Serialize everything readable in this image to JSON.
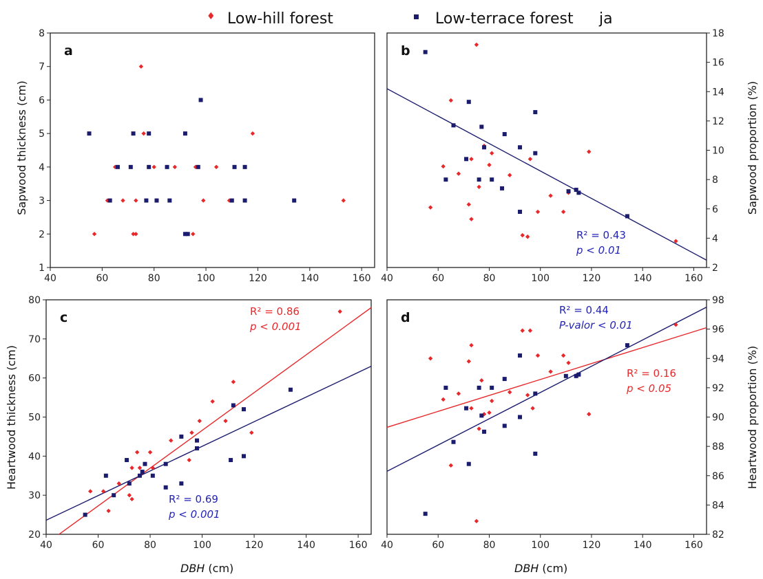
{
  "legend": {
    "low_hill": "Low-hill forest",
    "low_terrace": "Low-terrace forest",
    "extra": "ja"
  },
  "colors": {
    "low_hill": "#e8282a",
    "low_terrace": "#1c1c6e",
    "stat_red": "#e8282a",
    "stat_blue": "#2424b4"
  },
  "chart_data": [
    {
      "id": "a",
      "type": "scatter",
      "letter": "a",
      "ylabel": "Sapwood thickness (cm)",
      "xlabel": "",
      "xlim": [
        40,
        165
      ],
      "ylim": [
        1,
        8
      ],
      "xticks": [
        40,
        60,
        80,
        100,
        120,
        140,
        160
      ],
      "yticks": [
        1,
        2,
        3,
        4,
        5,
        6,
        7,
        8
      ],
      "series": [
        {
          "name": "Low-hill forest",
          "color": "#e8282a",
          "points": [
            [
              57,
              2
            ],
            [
              62,
              3
            ],
            [
              65,
              4
            ],
            [
              68,
              3
            ],
            [
              72,
              2
            ],
            [
              73,
              2
            ],
            [
              73,
              3
            ],
            [
              75,
              7
            ],
            [
              76,
              5
            ],
            [
              80,
              4
            ],
            [
              81,
              3
            ],
            [
              88,
              4
            ],
            [
              95,
              2
            ],
            [
              96,
              4
            ],
            [
              99,
              3
            ],
            [
              104,
              4
            ],
            [
              109,
              3
            ],
            [
              118,
              5
            ],
            [
              153,
              3
            ]
          ]
        },
        {
          "name": "Low-terrace forest",
          "color": "#1c1c6e",
          "points": [
            [
              55,
              5
            ],
            [
              63,
              3
            ],
            [
              66,
              4
            ],
            [
              71,
              4
            ],
            [
              72,
              5
            ],
            [
              77,
              3
            ],
            [
              78,
              5
            ],
            [
              78,
              4
            ],
            [
              81,
              3
            ],
            [
              85,
              4
            ],
            [
              86,
              3
            ],
            [
              92,
              5
            ],
            [
              92,
              2
            ],
            [
              93,
              2
            ],
            [
              97,
              4
            ],
            [
              98,
              6
            ],
            [
              110,
              3
            ],
            [
              111,
              4
            ],
            [
              115,
              4
            ],
            [
              115,
              3
            ],
            [
              134,
              3
            ]
          ]
        }
      ],
      "fits": [],
      "stats": []
    },
    {
      "id": "b",
      "type": "scatter",
      "letter": "b",
      "ylabel": "Sapwood proportion (%)",
      "xlabel": "",
      "xlim": [
        40,
        165
      ],
      "ylim": [
        2,
        18
      ],
      "xticks": [
        40,
        60,
        80,
        100,
        120,
        140,
        160
      ],
      "yticks": [
        2,
        4,
        6,
        8,
        10,
        12,
        14,
        16,
        18
      ],
      "series": [
        {
          "name": "Low-hill forest",
          "color": "#e8282a",
          "points": [
            [
              57,
              6.1
            ],
            [
              62,
              8.9
            ],
            [
              65,
              13.4
            ],
            [
              68,
              8.4
            ],
            [
              72,
              6.3
            ],
            [
              73,
              5.3
            ],
            [
              73,
              9.4
            ],
            [
              75,
              17.2
            ],
            [
              76,
              7.5
            ],
            [
              78,
              10.3
            ],
            [
              80,
              9
            ],
            [
              81,
              9.8
            ],
            [
              88,
              8.3
            ],
            [
              93,
              4.2
            ],
            [
              95,
              4.1
            ],
            [
              96,
              9.4
            ],
            [
              99,
              5.8
            ],
            [
              104,
              6.9
            ],
            [
              109,
              5.8
            ],
            [
              111,
              7.1
            ],
            [
              119,
              9.9
            ],
            [
              153,
              3.8
            ]
          ]
        },
        {
          "name": "Low-terrace forest",
          "color": "#1c1c6e",
          "points": [
            [
              55,
              16.7
            ],
            [
              63,
              8
            ],
            [
              66,
              11.7
            ],
            [
              71,
              9.4
            ],
            [
              72,
              13.3
            ],
            [
              76,
              8
            ],
            [
              77,
              11.6
            ],
            [
              78,
              10.2
            ],
            [
              81,
              8
            ],
            [
              85,
              7.4
            ],
            [
              86,
              11.1
            ],
            [
              92,
              10.2
            ],
            [
              92,
              5.8
            ],
            [
              98,
              9.8
            ],
            [
              98,
              12.6
            ],
            [
              111,
              7.2
            ],
            [
              114,
              7.3
            ],
            [
              115,
              7.1
            ],
            [
              134,
              5.5
            ]
          ]
        }
      ],
      "fits": [
        {
          "series": "Low-terrace forest",
          "color": "#1c1c6e",
          "x0": 40,
          "y0": 14.2,
          "x1": 165,
          "y1": 2.5
        }
      ],
      "stats": [
        {
          "color": "#2424b4",
          "r2": "R² = 0.43",
          "p": "p < 0.01",
          "pos": "bottom-right"
        }
      ]
    },
    {
      "id": "c",
      "type": "scatter",
      "letter": "c",
      "ylabel": "Heartwood thickness (cm)",
      "xlabel": "DBH (cm)",
      "xlim": [
        40,
        165
      ],
      "ylim": [
        20,
        80
      ],
      "xticks": [
        40,
        60,
        80,
        100,
        120,
        140,
        160
      ],
      "yticks": [
        20,
        30,
        40,
        50,
        60,
        70,
        80
      ],
      "series": [
        {
          "name": "Low-hill forest",
          "color": "#e8282a",
          "points": [
            [
              57,
              31
            ],
            [
              62,
              31
            ],
            [
              64,
              26
            ],
            [
              68,
              33
            ],
            [
              72,
              30
            ],
            [
              73,
              29
            ],
            [
              73,
              37
            ],
            [
              75,
              41
            ],
            [
              76,
              37
            ],
            [
              80,
              41
            ],
            [
              81,
              37
            ],
            [
              88,
              44
            ],
            [
              95,
              39
            ],
            [
              96,
              46
            ],
            [
              99,
              49
            ],
            [
              104,
              54
            ],
            [
              109,
              49
            ],
            [
              112,
              59
            ],
            [
              119,
              46
            ],
            [
              153,
              77
            ]
          ]
        },
        {
          "name": "Low-terrace forest",
          "color": "#1c1c6e",
          "points": [
            [
              55,
              25
            ],
            [
              63,
              35
            ],
            [
              66,
              30
            ],
            [
              71,
              39
            ],
            [
              72,
              33
            ],
            [
              76,
              35
            ],
            [
              77,
              36
            ],
            [
              78,
              38
            ],
            [
              81,
              35
            ],
            [
              86,
              38
            ],
            [
              86,
              32
            ],
            [
              92,
              33
            ],
            [
              92,
              45
            ],
            [
              98,
              42
            ],
            [
              98,
              44
            ],
            [
              111,
              39
            ],
            [
              112,
              53
            ],
            [
              116,
              52
            ],
            [
              116,
              40
            ],
            [
              134,
              57
            ]
          ]
        }
      ],
      "fits": [
        {
          "series": "Low-hill forest",
          "color": "#e8282a",
          "x0": 40,
          "y0": 17.6,
          "x1": 165,
          "y1": 78
        },
        {
          "series": "Low-terrace forest",
          "color": "#1c1c6e",
          "x0": 40,
          "y0": 23.6,
          "x1": 165,
          "y1": 63
        }
      ],
      "stats": [
        {
          "color": "#e8282a",
          "r2": "R² = 0.86",
          "p": "p < 0.001",
          "pos": "top-right"
        },
        {
          "color": "#2424b4",
          "r2": "R² = 0.69",
          "p": "p < 0.001",
          "pos": "bottom-mid"
        }
      ]
    },
    {
      "id": "d",
      "type": "scatter",
      "letter": "d",
      "ylabel": "Heartwood proportion (%)",
      "xlabel": "DBH (cm)",
      "xlim": [
        40,
        165
      ],
      "ylim": [
        82,
        98
      ],
      "xticks": [
        40,
        60,
        80,
        100,
        120,
        140,
        160
      ],
      "yticks": [
        82,
        84,
        86,
        88,
        90,
        92,
        94,
        96,
        98
      ],
      "series": [
        {
          "name": "Low-hill forest",
          "color": "#e8282a",
          "points": [
            [
              57,
              94
            ],
            [
              62,
              91.2
            ],
            [
              65,
              86.7
            ],
            [
              68,
              91.6
            ],
            [
              72,
              93.8
            ],
            [
              73,
              94.9
            ],
            [
              73,
              90.6
            ],
            [
              75,
              82.9
            ],
            [
              76,
              89.2
            ],
            [
              77,
              92.5
            ],
            [
              78,
              90.2
            ],
            [
              80,
              90.3
            ],
            [
              81,
              91.1
            ],
            [
              88,
              91.7
            ],
            [
              93,
              95.9
            ],
            [
              95,
              91.5
            ],
            [
              96,
              95.9
            ],
            [
              97,
              90.6
            ],
            [
              99,
              94.2
            ],
            [
              104,
              93.1
            ],
            [
              109,
              94.2
            ],
            [
              111,
              93.7
            ],
            [
              119,
              90.2
            ],
            [
              153,
              96.3
            ]
          ]
        },
        {
          "name": "Low-terrace forest",
          "color": "#1c1c6e",
          "points": [
            [
              55,
              83.4
            ],
            [
              63,
              92
            ],
            [
              66,
              88.3
            ],
            [
              71,
              90.6
            ],
            [
              72,
              86.8
            ],
            [
              76,
              92
            ],
            [
              77,
              90.1
            ],
            [
              78,
              89
            ],
            [
              81,
              92
            ],
            [
              86,
              92.6
            ],
            [
              86,
              89.4
            ],
            [
              92,
              90
            ],
            [
              92,
              94.2
            ],
            [
              98,
              87.5
            ],
            [
              98,
              91.6
            ],
            [
              110,
              92.8
            ],
            [
              114,
              92.8
            ],
            [
              115,
              92.9
            ],
            [
              134,
              94.9
            ]
          ]
        }
      ],
      "fits": [
        {
          "series": "Low-hill forest",
          "color": "#e8282a",
          "x0": 40,
          "y0": 89.3,
          "x1": 165,
          "y1": 96.1
        },
        {
          "series": "Low-terrace forest",
          "color": "#1c1c6e",
          "x0": 40,
          "y0": 86.3,
          "x1": 165,
          "y1": 97.5
        }
      ],
      "stats": [
        {
          "color": "#2424b4",
          "r2": "R² = 0.44",
          "p": "P-valor < 0.01",
          "pos": "top-mid"
        },
        {
          "color": "#e8282a",
          "r2": "R² = 0.16",
          "p": "p < 0.05",
          "pos": "mid-right"
        }
      ]
    }
  ]
}
